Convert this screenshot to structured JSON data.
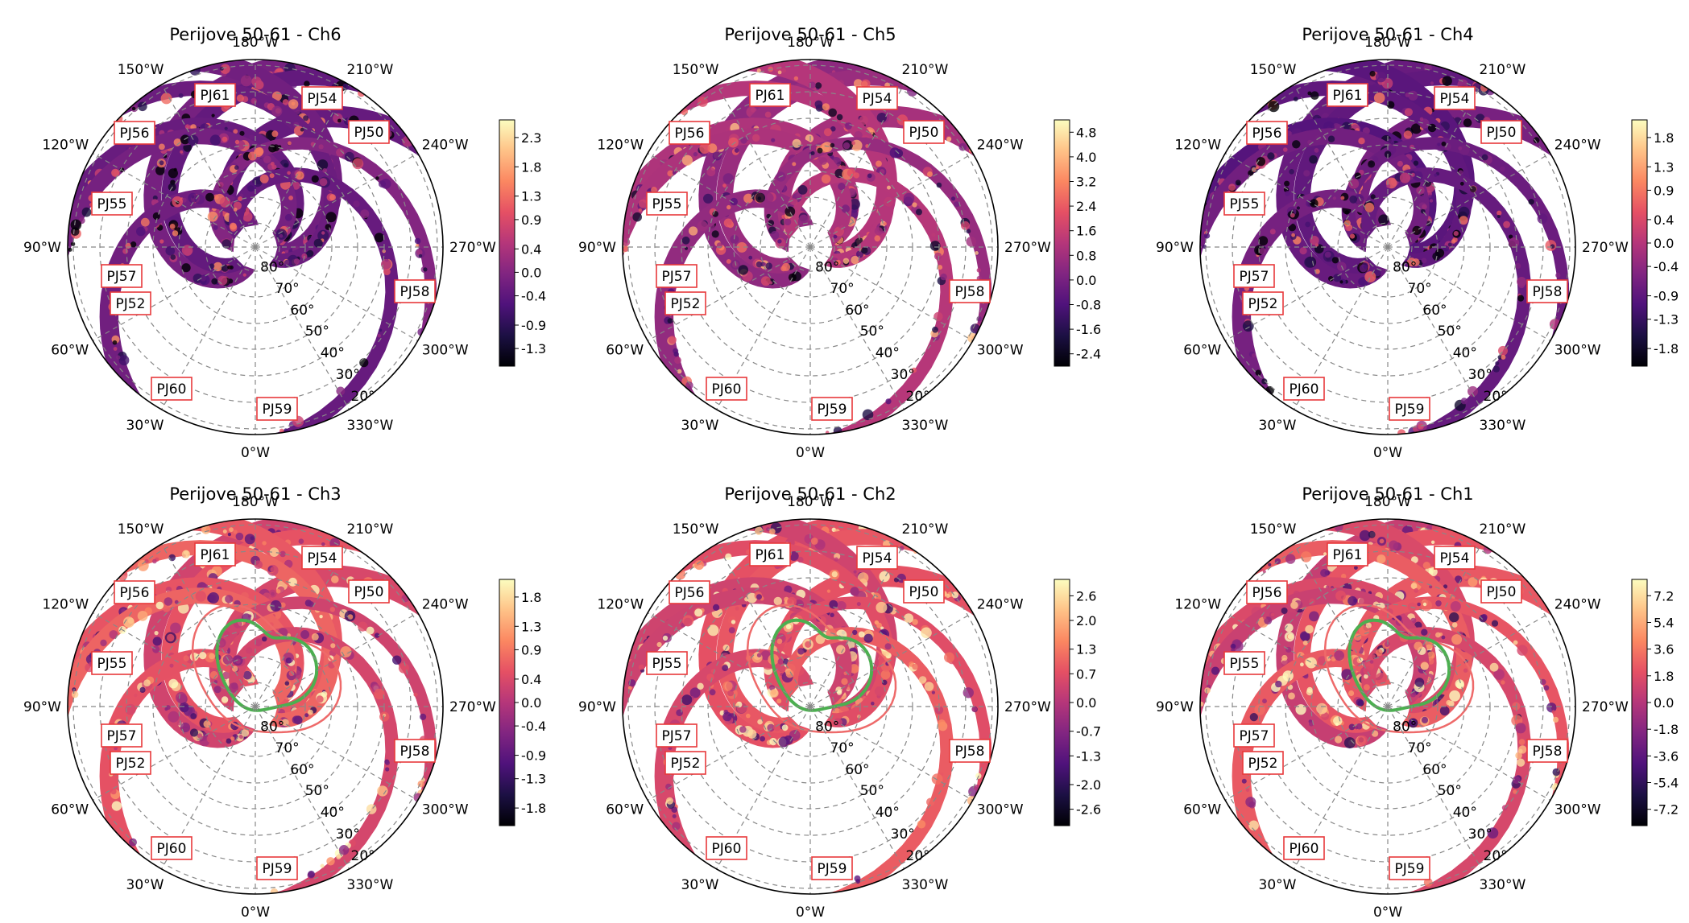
{
  "figure": {
    "panels": [
      {
        "title": "Perijove 50-61 - Ch6",
        "channel": "Ch6",
        "colorbar_ticks": [
          "2.3",
          "1.8",
          "1.3",
          "0.9",
          "0.4",
          "0.0",
          "-0.4",
          "-0.9",
          "-1.3"
        ],
        "colorbar_range": [
          -1.6,
          2.6
        ],
        "has_contours": false
      },
      {
        "title": "Perijove 50-61 - Ch5",
        "channel": "Ch5",
        "colorbar_ticks": [
          "4.8",
          "4.0",
          "3.2",
          "2.4",
          "1.6",
          "0.8",
          "0.0",
          "-0.8",
          "-1.6",
          "-2.4"
        ],
        "colorbar_range": [
          -2.8,
          5.2
        ],
        "has_contours": false
      },
      {
        "title": "Perijove 50-61 - Ch4",
        "channel": "Ch4",
        "colorbar_ticks": [
          "1.8",
          "1.3",
          "0.9",
          "0.4",
          "0.0",
          "-0.4",
          "-0.9",
          "-1.3",
          "-1.8"
        ],
        "colorbar_range": [
          -2.1,
          2.1
        ],
        "has_contours": false
      },
      {
        "title": "Perijove 50-61 - Ch3",
        "channel": "Ch3",
        "colorbar_ticks": [
          "1.8",
          "1.3",
          "0.9",
          "0.4",
          "0.0",
          "-0.4",
          "-0.9",
          "-1.3",
          "-1.8"
        ],
        "colorbar_range": [
          -2.1,
          2.1
        ],
        "has_contours": true
      },
      {
        "title": "Perijove 50-61 - Ch2",
        "channel": "Ch2",
        "colorbar_ticks": [
          "2.6",
          "2.0",
          "1.3",
          "0.7",
          "0.0",
          "-0.7",
          "-1.3",
          "-2.0",
          "-2.6"
        ],
        "colorbar_range": [
          -3.0,
          3.0
        ],
        "has_contours": true
      },
      {
        "title": "Perijove 50-61 - Ch1",
        "channel": "Ch1",
        "colorbar_ticks": [
          "7.2",
          "5.4",
          "3.6",
          "1.8",
          "0.0",
          "-1.8",
          "-3.6",
          "-5.4",
          "-7.2"
        ],
        "colorbar_range": [
          -8.3,
          8.3
        ],
        "has_contours": true
      }
    ]
  },
  "chart_data": {
    "type": "heatmap",
    "projection": "south-polar",
    "longitude_labels": [
      "0°W",
      "30°W",
      "60°W",
      "90°W",
      "120°W",
      "150°W",
      "180°W",
      "210°W",
      "240°W",
      "270°W",
      "300°W",
      "330°W"
    ],
    "latitude_labels": [
      "80°",
      "70°",
      "60°",
      "50°",
      "40°",
      "30°",
      "20°"
    ],
    "latitude_values": [
      80,
      70,
      60,
      50,
      40,
      30,
      20
    ],
    "perijove_labels": [
      "PJ50",
      "PJ52",
      "PJ54",
      "PJ55",
      "PJ56",
      "PJ57",
      "PJ58",
      "PJ59",
      "PJ60",
      "PJ61"
    ],
    "colormap": [
      "#000004",
      "#1c1044",
      "#4f127b",
      "#812581",
      "#b5367a",
      "#e55064",
      "#fb8761",
      "#fec287",
      "#fcfdbf"
    ],
    "grid": true,
    "colorbar": "right"
  },
  "colors": {
    "label_box_border": "#e8393b",
    "grid": "#888888",
    "outer_contour": "#ee6a6a",
    "inner_contour": "#4caf50"
  }
}
